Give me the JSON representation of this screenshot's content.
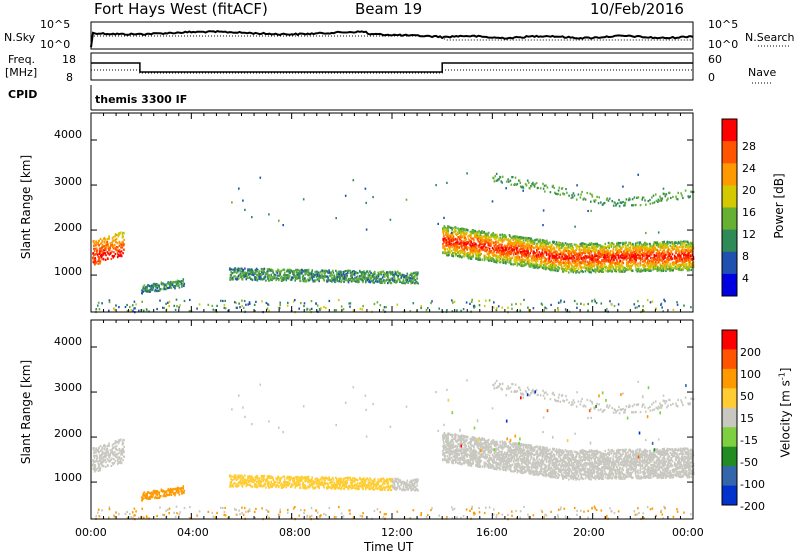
{
  "header": {
    "station": "Fort Hays West (fitACF)",
    "beam": "Beam 19",
    "date": "10/Feb/2016"
  },
  "top_panels": {
    "nsky_label": "N.Sky",
    "nsky_ticks": [
      "10^5",
      "10^0"
    ],
    "nsearch_label": "N.Search",
    "nsearch_ticks": [
      "10^5",
      "10^0"
    ],
    "freq_label_line1": "Freq.",
    "freq_label_line2": "[MHz]",
    "freq_ticks": [
      "18",
      "8"
    ],
    "nave_label": "Nave",
    "nave_ticks": [
      "60",
      "0"
    ],
    "cpid_label": "CPID",
    "cpid_value": "themis 3300 IF"
  },
  "chart_data": [
    {
      "type": "heatmap",
      "name": "power-panel",
      "ylabel": "Slant Range [km]",
      "yticks": [
        "4000",
        "3000",
        "2000",
        "1000"
      ],
      "ytick_values": [
        4000,
        3000,
        2000,
        1000
      ],
      "ylim": [
        180,
        4600
      ],
      "xlim": [
        0,
        24
      ],
      "colorbar_label": "Power [dB]",
      "colorbar_ticks": [
        "28",
        "24",
        "20",
        "16",
        "12",
        "8",
        "4"
      ],
      "colorbar_values": [
        28,
        24,
        20,
        16,
        12,
        8,
        4
      ],
      "colorbar_range": [
        0,
        32
      ],
      "colors": [
        "#0000e0",
        "#2050b0",
        "#2e8b57",
        "#66b032",
        "#d4c800",
        "#ff9900",
        "#ff5500",
        "#ff0000"
      ]
    },
    {
      "type": "heatmap",
      "name": "velocity-panel",
      "ylabel": "Slant Range [km]",
      "yticks": [
        "4000",
        "3000",
        "2000",
        "1000"
      ],
      "ytick_values": [
        4000,
        3000,
        2000,
        1000
      ],
      "ylim": [
        180,
        4600
      ],
      "xlim": [
        0,
        24
      ],
      "colorbar_label": "Velocity [m s",
      "colorbar_label_sup": "-1",
      "colorbar_label_end": "]",
      "colorbar_ticks": [
        "200",
        "100",
        "50",
        "15",
        "-15",
        "-50",
        "-100",
        "-200"
      ],
      "colors": [
        "#0033cc",
        "#3366aa",
        "#228b22",
        "#7fd040",
        "#c8c8c0",
        "#ffcc33",
        "#ff9900",
        "#ff5500",
        "#ff0000"
      ],
      "ground_scatter_color": "#c8c8c0"
    }
  ],
  "xaxis": {
    "ticks": [
      "00:00",
      "04:00",
      "08:00",
      "12:00",
      "16:00",
      "20:00",
      "00:00"
    ],
    "tick_hours": [
      0,
      4,
      8,
      12,
      16,
      20,
      24
    ],
    "label": "Time UT"
  }
}
